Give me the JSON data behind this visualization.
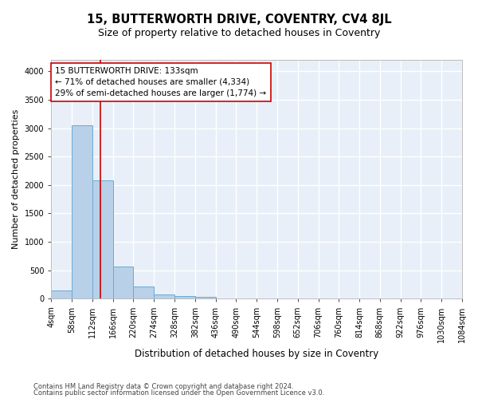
{
  "title": "15, BUTTERWORTH DRIVE, COVENTRY, CV4 8JL",
  "subtitle": "Size of property relative to detached houses in Coventry",
  "xlabel": "Distribution of detached houses by size in Coventry",
  "ylabel": "Number of detached properties",
  "bar_color": "#b8d0e8",
  "bar_edge_color": "#6aaad4",
  "background_color": "#e8eff8",
  "grid_color": "white",
  "bin_edges": [
    4,
    58,
    112,
    166,
    220,
    274,
    328,
    382,
    436,
    490,
    544,
    598,
    652,
    706,
    760,
    814,
    868,
    922,
    976,
    1030,
    1084
  ],
  "bin_labels": [
    "4sqm",
    "58sqm",
    "112sqm",
    "166sqm",
    "220sqm",
    "274sqm",
    "328sqm",
    "382sqm",
    "436sqm",
    "490sqm",
    "544sqm",
    "598sqm",
    "652sqm",
    "706sqm",
    "760sqm",
    "814sqm",
    "868sqm",
    "922sqm",
    "976sqm",
    "1030sqm",
    "1084sqm"
  ],
  "counts": [
    150,
    3050,
    2075,
    560,
    210,
    75,
    50,
    40,
    5,
    0,
    0,
    0,
    0,
    0,
    0,
    0,
    0,
    0,
    0,
    0
  ],
  "property_size": 133,
  "vline_color": "#cc0000",
  "annotation_line1": "15 BUTTERWORTH DRIVE: 133sqm",
  "annotation_line2": "← 71% of detached houses are smaller (4,334)",
  "annotation_line3": "29% of semi-detached houses are larger (1,774) →",
  "annotation_box_color": "white",
  "annotation_box_edge": "#cc0000",
  "footer_line1": "Contains HM Land Registry data © Crown copyright and database right 2024.",
  "footer_line2": "Contains public sector information licensed under the Open Government Licence v3.0.",
  "ylim": [
    0,
    4200
  ],
  "yticks": [
    0,
    500,
    1000,
    1500,
    2000,
    2500,
    3000,
    3500,
    4000
  ],
  "title_fontsize": 10.5,
  "subtitle_fontsize": 9,
  "ylabel_fontsize": 8,
  "xlabel_fontsize": 8.5,
  "tick_fontsize": 7,
  "annotation_fontsize": 7.5,
  "footer_fontsize": 6
}
